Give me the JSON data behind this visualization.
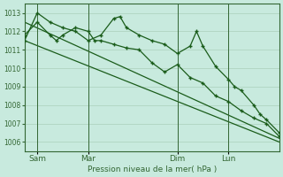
{
  "title": "Pression niveau de la mer( hPa )",
  "bg_color": "#c8eade",
  "grid_color": "#aacfbb",
  "line_color": "#1a5c1a",
  "vline_color": "#336633",
  "ylim": [
    1005.5,
    1013.5
  ],
  "yticks": [
    1006,
    1007,
    1008,
    1009,
    1010,
    1011,
    1012,
    1013
  ],
  "xtick_labels": [
    "Sam",
    "Mar",
    "Dim",
    "Lun"
  ],
  "xtick_positions": [
    2,
    10,
    24,
    32
  ],
  "vline_positions": [
    2,
    10,
    24,
    32
  ],
  "xlim": [
    0,
    40
  ],
  "series1_x": [
    0,
    2,
    4,
    6,
    8,
    10,
    12,
    14,
    15,
    16,
    18,
    20,
    22,
    24,
    26,
    27,
    28,
    30,
    32,
    33,
    34,
    36,
    37,
    38,
    40
  ],
  "series1_y": [
    1011.5,
    1013.0,
    1012.5,
    1012.2,
    1012.0,
    1011.5,
    1011.8,
    1012.7,
    1012.8,
    1012.2,
    1011.8,
    1011.5,
    1011.3,
    1010.8,
    1011.2,
    1012.0,
    1011.2,
    1010.1,
    1009.4,
    1009.0,
    1008.8,
    1008.0,
    1007.5,
    1007.2,
    1006.5
  ],
  "series2_x": [
    0,
    2,
    4,
    5,
    6,
    8,
    10,
    11,
    12,
    14,
    16,
    18,
    20,
    22,
    24,
    26,
    28,
    30,
    32,
    34,
    36,
    38,
    40
  ],
  "series2_y": [
    1011.8,
    1012.5,
    1011.8,
    1011.5,
    1011.8,
    1012.2,
    1012.0,
    1011.5,
    1011.5,
    1011.3,
    1011.1,
    1011.0,
    1010.3,
    1009.8,
    1010.2,
    1009.5,
    1009.2,
    1008.5,
    1008.2,
    1007.7,
    1007.3,
    1007.0,
    1006.3
  ],
  "trend1_x": [
    0,
    40
  ],
  "trend1_y": [
    1012.5,
    1006.2
  ],
  "trend2_x": [
    0,
    40
  ],
  "trend2_y": [
    1011.5,
    1006.0
  ]
}
